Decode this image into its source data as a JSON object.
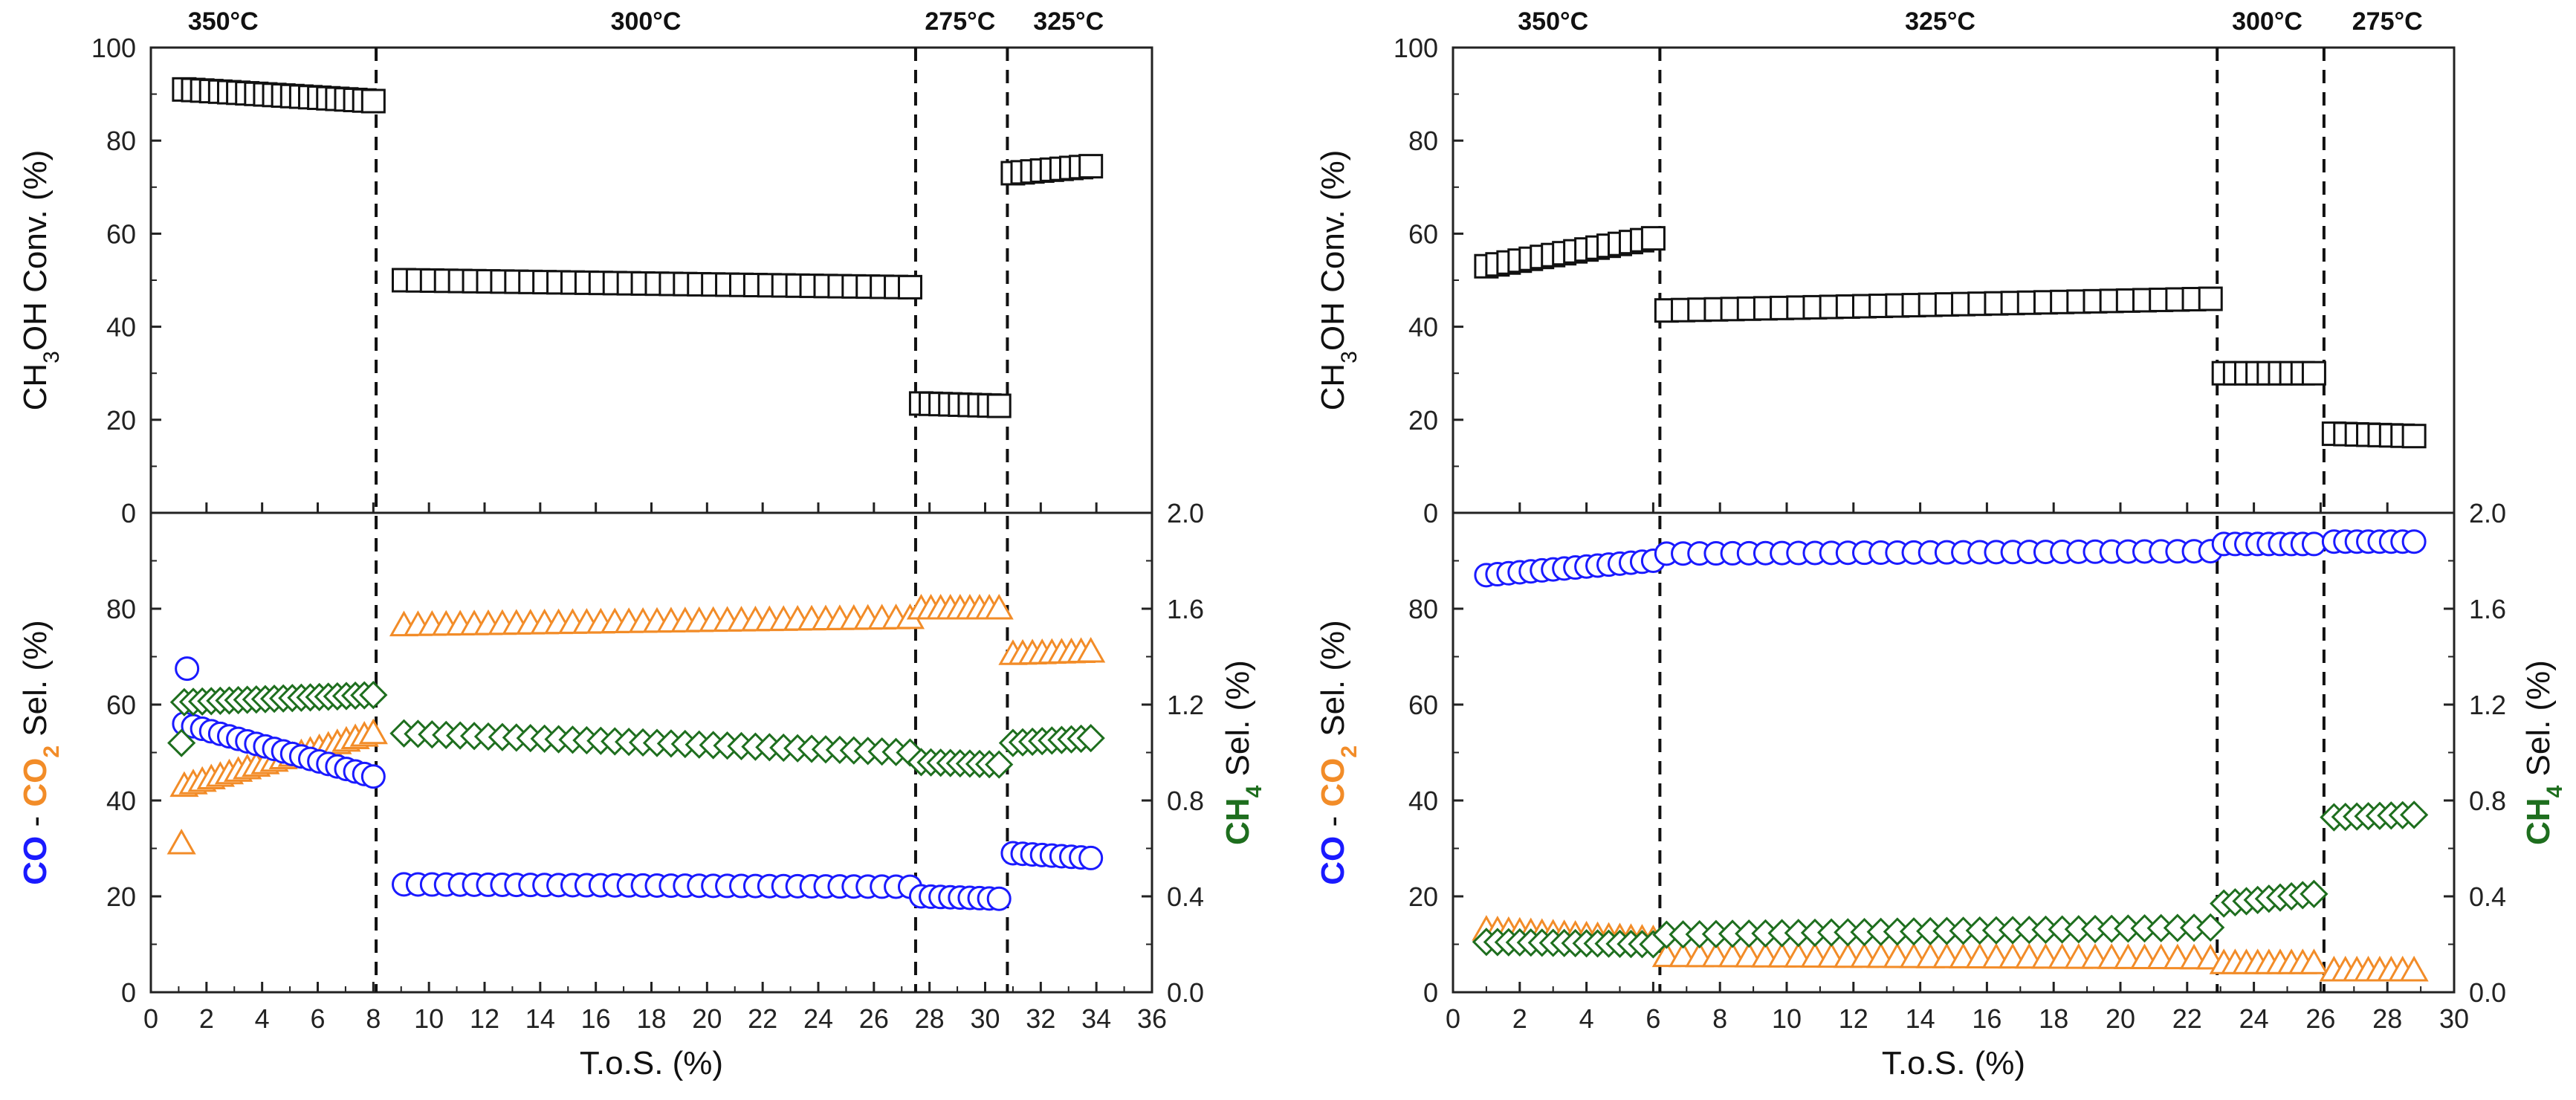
{
  "colors": {
    "conversion": "#111111",
    "co": "#1a1aff",
    "co2": "#f28c28",
    "ch4": "#1e6e1e"
  },
  "chart_data": [
    {
      "type": "scatter",
      "panel": "left",
      "xlabel": "T.o.S. (%)",
      "xlim": [
        0,
        36
      ],
      "xticks": [
        "0",
        "2",
        "4",
        "6",
        "8",
        "10",
        "12",
        "14",
        "16",
        "18",
        "20",
        "22",
        "24",
        "26",
        "28",
        "30",
        "32",
        "34",
        "36"
      ],
      "top_axis": {
        "label_parts": [
          "CH",
          "3",
          "OH  Conv. (%)"
        ],
        "ylim": [
          0,
          100
        ],
        "ticks": [
          "0",
          "20",
          "40",
          "60",
          "80",
          "100"
        ]
      },
      "bottom_left_axis": {
        "label_parts": [
          "CO",
          " - ",
          "CO",
          "2",
          " Sel. (%)"
        ],
        "ylim": [
          0,
          100
        ],
        "ticks": [
          "0",
          "20",
          "40",
          "60",
          "80"
        ]
      },
      "bottom_right_axis": {
        "label_parts": [
          "CH",
          "4",
          " Sel. (%)"
        ],
        "ylim": [
          0,
          2.0
        ],
        "ticks": [
          "0.0",
          "0.4",
          "0.8",
          "1.2",
          "1.6",
          "2.0"
        ]
      },
      "temperature_boundaries": [
        8.1,
        27.5,
        30.8
      ],
      "temperature_segments": [
        {
          "label": "350°C",
          "x": 2.6
        },
        {
          "label": "300°C",
          "x": 17.8
        },
        {
          "label": "275°C",
          "x": 29.1
        },
        {
          "label": "325°C",
          "x": 33.0
        }
      ],
      "segments": [
        {
          "start": 1.2,
          "end": 8.0,
          "step": 0.33,
          "conv": [
            91,
            88.5
          ],
          "co": [
            56,
            45
          ],
          "co2": [
            43,
            54
          ],
          "ch4": [
            1.21,
            1.24
          ]
        },
        {
          "start": 9.1,
          "end": 27.3,
          "step": 0.5,
          "conv": [
            50,
            48.5
          ],
          "co": [
            22.5,
            22
          ],
          "co2": [
            76.5,
            78
          ],
          "ch4": [
            1.08,
            1.0
          ]
        },
        {
          "start": 27.7,
          "end": 30.5,
          "step": 0.33,
          "conv": [
            23.5,
            23
          ],
          "co": [
            20,
            19.5
          ],
          "co2": [
            80,
            80
          ],
          "ch4": [
            0.96,
            0.95
          ]
        },
        {
          "start": 31.0,
          "end": 33.8,
          "step": 0.33,
          "conv": [
            73,
            74.5
          ],
          "co": [
            29,
            28
          ],
          "co2": [
            70.5,
            71
          ],
          "ch4": [
            1.04,
            1.06
          ]
        }
      ],
      "extra_points": {
        "co": [
          [
            1.3,
            67.5
          ]
        ],
        "co2": [
          [
            1.1,
            31
          ]
        ],
        "ch4": [
          [
            1.1,
            1.04
          ]
        ]
      }
    },
    {
      "type": "scatter",
      "panel": "right",
      "xlabel": "T.o.S. (%)",
      "xlim": [
        0,
        30
      ],
      "xticks": [
        "0",
        "2",
        "4",
        "6",
        "8",
        "10",
        "12",
        "14",
        "16",
        "18",
        "20",
        "22",
        "24",
        "26",
        "28",
        "30"
      ],
      "top_axis": {
        "label_parts": [
          "CH",
          "3",
          "OH  Conv. (%)"
        ],
        "ylim": [
          0,
          100
        ],
        "ticks": [
          "0",
          "20",
          "40",
          "60",
          "80",
          "100"
        ]
      },
      "bottom_left_axis": {
        "label_parts": [
          "CO",
          " - ",
          "CO",
          "2",
          " Sel. (%)"
        ],
        "ylim": [
          0,
          100
        ],
        "ticks": [
          "0",
          "20",
          "40",
          "60",
          "80"
        ]
      },
      "bottom_right_axis": {
        "label_parts": [
          "CH",
          "4",
          " Sel. (%)"
        ],
        "ylim": [
          0,
          2.0
        ],
        "ticks": [
          "0.0",
          "0.4",
          "0.8",
          "1.2",
          "1.6",
          "2.0"
        ]
      },
      "temperature_boundaries": [
        6.2,
        22.9,
        26.1
      ],
      "temperature_segments": [
        {
          "label": "350°C",
          "x": 3.0
        },
        {
          "label": "325°C",
          "x": 14.6
        },
        {
          "label": "300°C",
          "x": 24.4
        },
        {
          "label": "275°C",
          "x": 28.0
        }
      ],
      "segments": [
        {
          "start": 1.0,
          "end": 6.0,
          "step": 0.33,
          "conv": [
            53,
            59
          ],
          "co": [
            87,
            90
          ],
          "co2": [
            13,
            11
          ],
          "ch4": [
            0.21,
            0.2
          ]
        },
        {
          "start": 6.4,
          "end": 22.7,
          "step": 0.5,
          "conv": [
            43.5,
            46
          ],
          "co": [
            91.5,
            92
          ],
          "co2": [
            7.5,
            7
          ],
          "ch4": [
            0.24,
            0.27
          ]
        },
        {
          "start": 23.1,
          "end": 25.8,
          "step": 0.33,
          "conv": [
            30,
            30
          ],
          "co": [
            93.5,
            93.5
          ],
          "co2": [
            6,
            6
          ],
          "ch4": [
            0.37,
            0.41
          ]
        },
        {
          "start": 26.4,
          "end": 28.8,
          "step": 0.33,
          "conv": [
            17,
            16.5
          ],
          "co": [
            94,
            94
          ],
          "co2": [
            4.5,
            4.5
          ],
          "ch4": [
            0.73,
            0.74
          ]
        }
      ],
      "extra_points": {
        "co": [],
        "co2": [],
        "ch4": []
      }
    }
  ]
}
